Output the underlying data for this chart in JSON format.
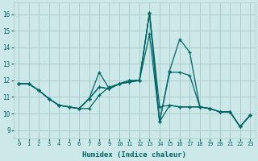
{
  "xlabel": "Humidex (Indice chaleur)",
  "bg_color": "#cce8e8",
  "grid_color": "#aacccc",
  "line_color": "#006666",
  "xlim": [
    -0.5,
    23.5
  ],
  "ylim": [
    8.5,
    16.7
  ],
  "xticks": [
    0,
    1,
    2,
    3,
    4,
    5,
    6,
    7,
    8,
    9,
    10,
    11,
    12,
    13,
    14,
    15,
    16,
    17,
    18,
    19,
    20,
    21,
    22,
    23
  ],
  "yticks": [
    9,
    10,
    11,
    12,
    13,
    14,
    15,
    16
  ],
  "lines": [
    {
      "x": [
        0,
        1,
        2,
        3,
        4,
        5,
        6,
        7,
        8,
        9,
        10,
        11,
        12,
        13,
        14,
        15,
        16,
        17,
        18,
        19,
        20,
        21,
        22,
        23
      ],
      "y": [
        11.8,
        11.8,
        11.4,
        10.9,
        10.5,
        10.4,
        10.3,
        10.3,
        11.1,
        11.6,
        11.8,
        11.9,
        12.0,
        16.1,
        10.4,
        10.5,
        10.4,
        10.4,
        10.4,
        10.3,
        10.1,
        10.1,
        9.2,
        9.9
      ]
    },
    {
      "x": [
        0,
        1,
        2,
        3,
        4,
        5,
        6,
        7,
        8,
        9,
        10,
        11,
        12,
        13,
        14,
        15,
        16,
        17,
        18,
        19,
        20,
        21,
        22,
        23
      ],
      "y": [
        11.8,
        11.8,
        11.4,
        10.9,
        10.5,
        10.4,
        10.3,
        10.9,
        12.5,
        11.5,
        11.8,
        11.9,
        12.0,
        16.1,
        9.5,
        10.5,
        10.4,
        10.4,
        10.4,
        10.3,
        10.1,
        10.1,
        9.2,
        9.9
      ]
    },
    {
      "x": [
        0,
        1,
        2,
        3,
        4,
        5,
        6,
        7,
        8,
        9,
        10,
        11,
        12,
        13,
        14,
        15,
        16,
        17,
        18,
        19,
        20,
        21,
        22,
        23
      ],
      "y": [
        11.8,
        11.8,
        11.4,
        10.9,
        10.5,
        10.4,
        10.3,
        10.9,
        11.6,
        11.5,
        11.8,
        12.0,
        12.0,
        16.1,
        9.5,
        12.5,
        12.5,
        12.3,
        10.4,
        10.3,
        10.1,
        10.1,
        9.2,
        9.9
      ]
    },
    {
      "x": [
        0,
        1,
        2,
        3,
        4,
        5,
        6,
        7,
        8,
        9,
        10,
        11,
        12,
        13,
        14,
        15,
        16,
        17,
        18,
        19,
        20,
        21,
        22,
        23
      ],
      "y": [
        11.8,
        11.8,
        11.4,
        10.9,
        10.5,
        10.4,
        10.3,
        10.9,
        11.6,
        11.5,
        11.8,
        12.0,
        12.0,
        14.8,
        9.5,
        12.6,
        14.5,
        13.7,
        10.4,
        10.3,
        10.1,
        10.1,
        9.2,
        9.9
      ]
    }
  ]
}
